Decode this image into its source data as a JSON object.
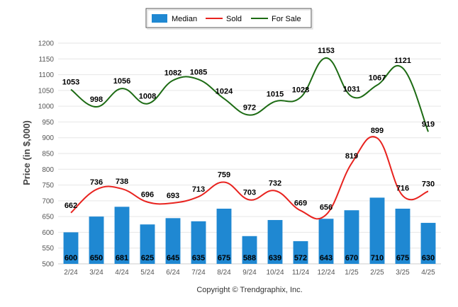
{
  "chart_data": {
    "type": "bar",
    "categories": [
      "2/24",
      "3/24",
      "4/24",
      "5/24",
      "6/24",
      "7/24",
      "8/24",
      "9/24",
      "10/24",
      "11/24",
      "12/24",
      "1/25",
      "2/25",
      "3/25",
      "4/25"
    ],
    "series": [
      {
        "name": "Median",
        "type": "bar",
        "color": "#1f88d2",
        "values": [
          600,
          650,
          681,
          625,
          645,
          635,
          675,
          588,
          639,
          572,
          643,
          670,
          710,
          675,
          630
        ]
      },
      {
        "name": "Sold",
        "type": "line",
        "color": "#e8231f",
        "values": [
          662,
          736,
          738,
          696,
          693,
          713,
          759,
          703,
          732,
          669,
          656,
          819,
          899,
          716,
          730
        ]
      },
      {
        "name": "For Sale",
        "type": "line",
        "color": "#1d6b14",
        "values": [
          1053,
          998,
          1056,
          1008,
          1082,
          1085,
          1024,
          972,
          1015,
          1028,
          1153,
          1031,
          1067,
          1121,
          919
        ]
      }
    ],
    "ylabel": "Price (in $,000)",
    "xlabel": "",
    "ylim": [
      500,
      1200
    ],
    "yticks": [
      500,
      550,
      600,
      650,
      700,
      750,
      800,
      850,
      900,
      950,
      1000,
      1050,
      1100,
      1150,
      1200
    ],
    "grid": true,
    "legend_position": "top-center"
  },
  "legend": {
    "median_label": "Median",
    "sold_label": "Sold",
    "for_sale_label": "For Sale"
  },
  "footer": {
    "copyright": "Copyright © Trendgraphix, Inc."
  }
}
